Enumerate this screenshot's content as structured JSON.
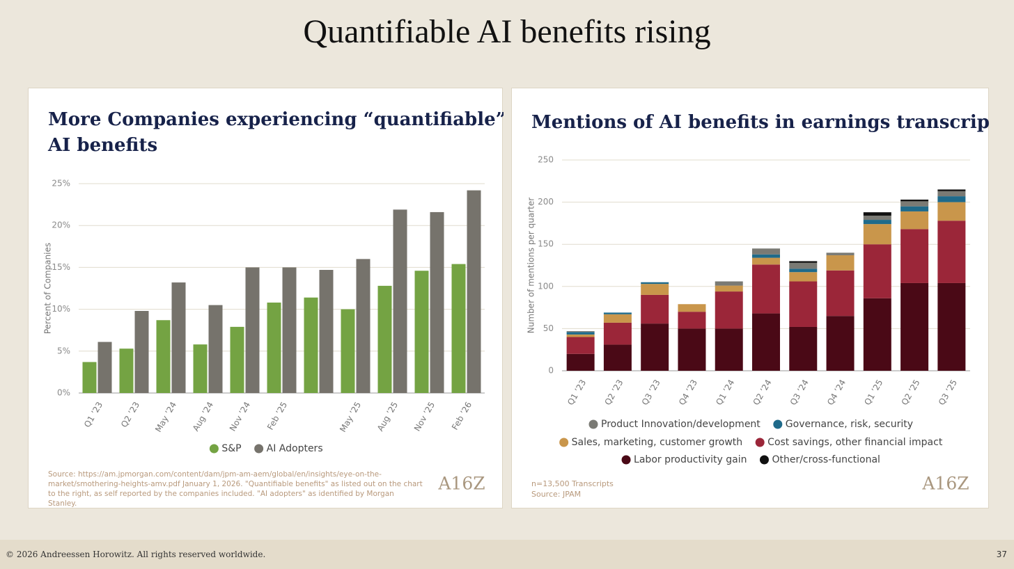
{
  "title": "Quantifiable AI benefits rising",
  "footer": "© 2026 Andreessen Horowitz. All rights reserved worldwide.",
  "page_number": 37,
  "chart_data": [
    {
      "type": "bar",
      "title": [
        "More Companies experiencing “quantifiable”",
        "AI benefits"
      ],
      "y_label": "Percent of Companies",
      "categories": [
        "Q1 ’23",
        "Q2 ’23",
        "May ’24",
        "Aug ’24",
        "Nov ’24",
        "Feb ’25",
        null,
        "May ’25",
        "Aug ’25",
        "Nov ’25",
        "Feb ’26"
      ],
      "series": [
        {
          "name": "S&P",
          "color": "#74a343",
          "values": [
            3.7,
            5.3,
            8.7,
            5.8,
            7.9,
            10.8,
            11.4,
            10.0,
            12.8,
            14.6,
            15.4
          ]
        },
        {
          "name": "AI Adopters",
          "color": "#76736c",
          "values": [
            6.1,
            9.8,
            13.2,
            10.5,
            15.0,
            15.0,
            14.7,
            16.0,
            21.9,
            21.6,
            24.2
          ]
        }
      ],
      "ylim": [
        0,
        25
      ],
      "yticks": [
        {
          "value": 0,
          "label": "0%"
        },
        {
          "value": 5,
          "label": "5%"
        },
        {
          "value": 10,
          "label": "10%"
        },
        {
          "value": 15,
          "label": "15%"
        },
        {
          "value": 20,
          "label": "20%"
        },
        {
          "value": 25,
          "label": "25%"
        }
      ],
      "grid": true,
      "source": "Source: https://am.jpmorgan.com/content/dam/jpm-am-aem/global/en/insights/eye-on-the-market/smothering-heights-amv.pdf January 1, 2026. \"Quantifiable benefits\" as listed out on the chart to the right, as self reported by the companies included. \"AI adopters\" as identified by Morgan Stanley.",
      "logo": "A16Z"
    },
    {
      "type": "stacked_bar",
      "title": [
        "Mentions of AI benefits in earnings transcripts"
      ],
      "y_label": "Number of mentions per quarter",
      "categories": [
        "Q1 ’23",
        "Q2 ’23",
        "Q3 ’23",
        "Q4 ’23",
        "Q1 ’24",
        "Q2 ’24",
        "Q3 ’24",
        "Q4 ’24",
        "Q1 ’25",
        "Q2 ’25",
        "Q3 ’25"
      ],
      "series": [
        {
          "name": "Product Innovation/development",
          "color": "#7a7a74",
          "values": [
            1,
            0,
            0,
            0,
            5,
            7,
            7,
            3,
            5,
            6,
            6
          ]
        },
        {
          "name": "Governance, risk, security",
          "color": "#1f6a8a",
          "values": [
            3,
            2,
            2,
            0,
            0,
            4,
            4,
            0,
            5,
            6,
            7
          ]
        },
        {
          "name": "Sales, marketing, customer growth",
          "color": "#c9964b",
          "values": [
            3,
            10,
            13,
            9,
            7,
            8,
            11,
            18,
            24,
            21,
            22
          ]
        },
        {
          "name": "Cost savings, other financial impact",
          "color": "#9b2639",
          "values": [
            20,
            26,
            34,
            20,
            44,
            58,
            54,
            54,
            64,
            64,
            74
          ]
        },
        {
          "name": "Labor productivity gain",
          "color": "#4a0916",
          "values": [
            20,
            31,
            56,
            50,
            50,
            68,
            52,
            65,
            86,
            104,
            104
          ]
        },
        {
          "name": "Other/cross-functional",
          "color": "#111111",
          "values": [
            0,
            0,
            0,
            0,
            0,
            0,
            2,
            0,
            4,
            2,
            2
          ]
        }
      ],
      "ylim": [
        0,
        250
      ],
      "yticks": [
        0,
        50,
        100,
        150,
        200,
        250
      ],
      "grid": true,
      "note": [
        "n=13,500 Transcripts",
        "Source: JPAM"
      ],
      "logo": "A16Z"
    }
  ]
}
